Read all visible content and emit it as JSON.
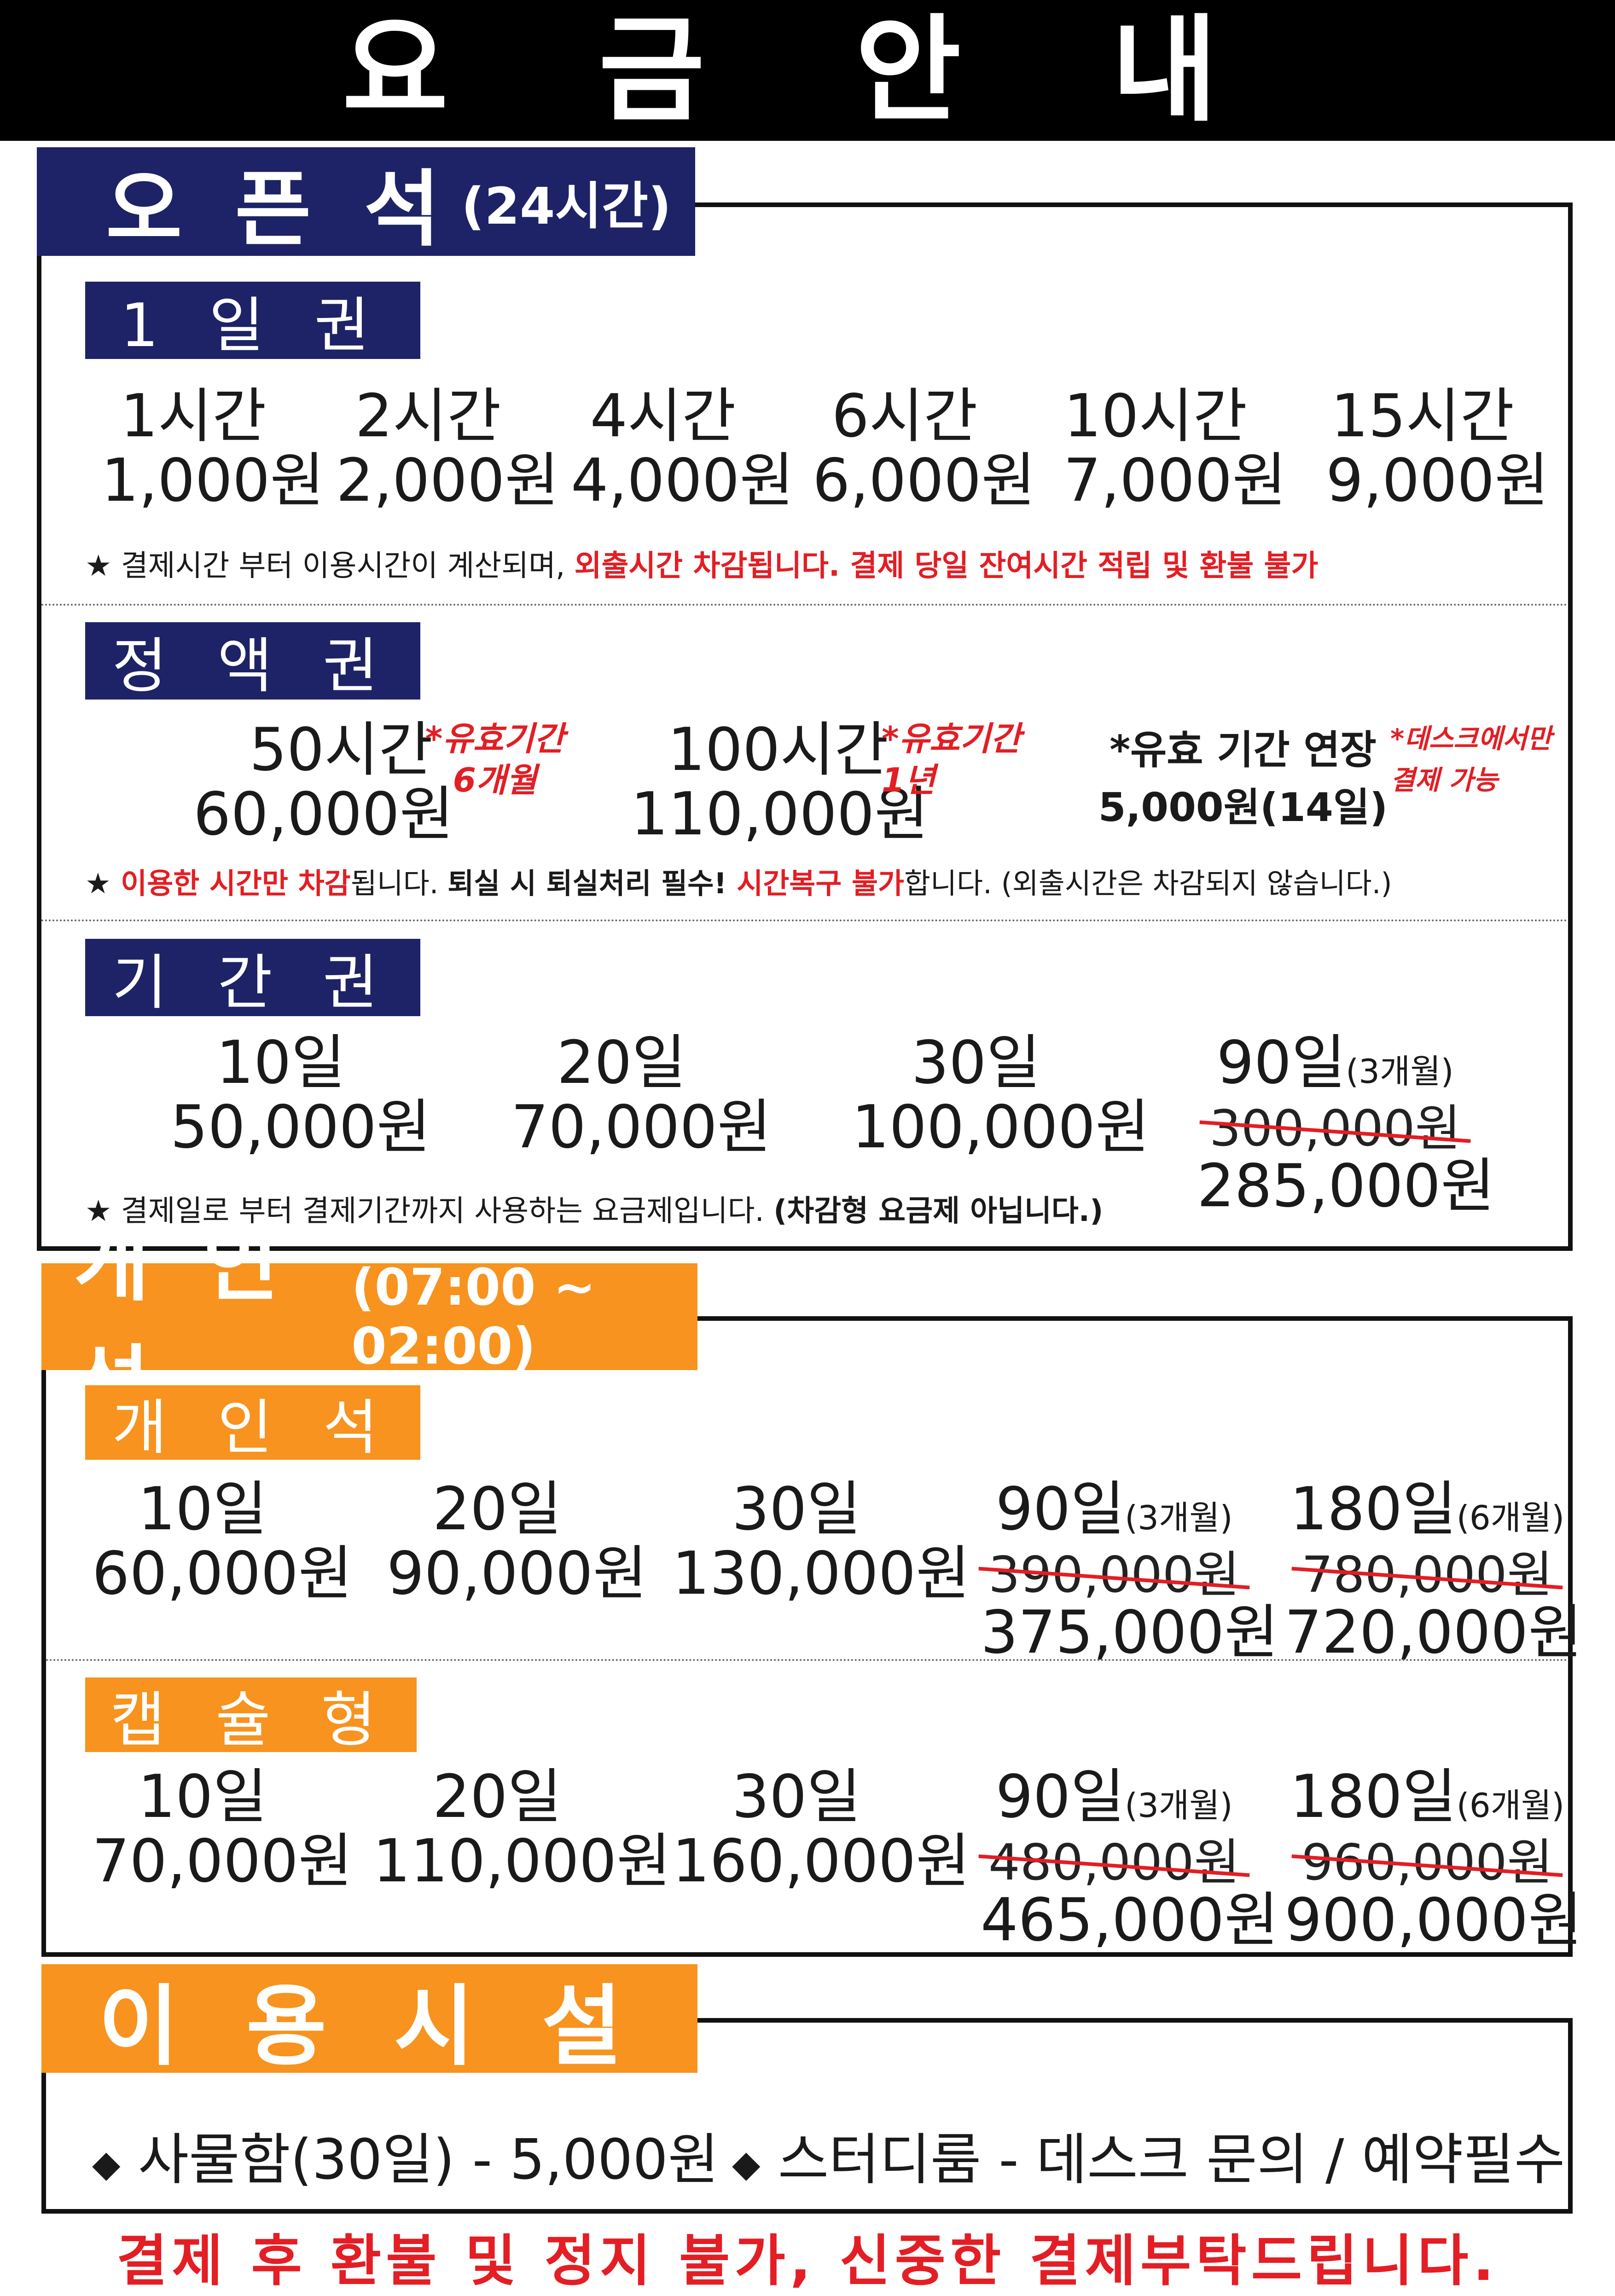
{
  "title": "요 금 안 내",
  "open_seat": {
    "title": "오 픈 석",
    "hours": "(24시간)",
    "day_pass": {
      "label": "1 일 권",
      "items": [
        {
          "duration": "1시간",
          "price": "1,000원"
        },
        {
          "duration": "2시간",
          "price": "2,000원"
        },
        {
          "duration": "4시간",
          "price": "4,000원"
        },
        {
          "duration": "6시간",
          "price": "6,000원"
        },
        {
          "duration": "10시간",
          "price": "7,000원"
        },
        {
          "duration": "15시간",
          "price": "9,000원"
        }
      ],
      "note_star": "★",
      "note_normal": " 결제시간 부터 이용시간이 계산되며, ",
      "note_red": "외출시간 차감됩니다.  결제 당일 잔여시간 적립 및 환불 불가"
    },
    "fixed_pass": {
      "label": "정 액 권",
      "items": [
        {
          "duration": "50시간",
          "price": "60,000원",
          "validity_1": "*유효기간",
          "validity_2": "6개월"
        },
        {
          "duration": "100시간",
          "price": "110,000원",
          "validity_1": "*유효기간",
          "validity_2": "1년"
        }
      ],
      "extension_title": "*유효 기간 연장",
      "extension_price": "5,000원(14일)",
      "extension_note_1": "*데스크에서만",
      "extension_note_2": "결제 가능",
      "note_star": "★",
      "note_red1": " 이용한 시간만 차감",
      "note_part2": "됩니다. ",
      "note_bold": "퇴실 시 퇴실처리 필수!",
      "note_red2": " 시간복구 불가",
      "note_part3": "합니다.  (외출시간은 차감되지 않습니다.)"
    },
    "period_pass": {
      "label": "기 간 권",
      "items": [
        {
          "duration": "10일",
          "price": "50,000원"
        },
        {
          "duration": "20일",
          "price": "70,000원"
        },
        {
          "duration": "30일",
          "price": "100,000원"
        },
        {
          "duration": "90일",
          "paren": "(3개월)",
          "old_price": "300,000원",
          "price": "285,000원"
        }
      ],
      "note_star": "★",
      "note_normal": " 결제일로 부터  결제기간까지 사용하는 요금제입니다. ",
      "note_bold": "(차감형 요금제 아닙니다.)"
    }
  },
  "private_seat": {
    "title": "개 인 석",
    "hours": "(07:00 ~ 02:00)",
    "private": {
      "label": "개 인 석",
      "items": [
        {
          "duration": "10일",
          "price": "60,000원"
        },
        {
          "duration": "20일",
          "price": "90,000원"
        },
        {
          "duration": "30일",
          "price": "130,000원"
        },
        {
          "duration": "90일",
          "paren": "(3개월)",
          "old_price": "390,000원",
          "price": "375,000원"
        },
        {
          "duration": "180일",
          "paren": "(6개월)",
          "old_price": "780,000원",
          "price": "720,000원"
        }
      ]
    },
    "capsule": {
      "label": "캡 슐 형",
      "items": [
        {
          "duration": "10일",
          "price": "70,000원"
        },
        {
          "duration": "20일",
          "price": "110,000원"
        },
        {
          "duration": "30일",
          "price": "160,000원"
        },
        {
          "duration": "90일",
          "paren": "(3개월)",
          "old_price": "480,000원",
          "price": "465,000원"
        },
        {
          "duration": "180일",
          "paren": "(6개월)",
          "old_price": "960,000원",
          "price": "900,000원"
        }
      ]
    }
  },
  "facilities": {
    "title": "이 용 시 설",
    "bullet": "◆",
    "locker": "사물함(30일)  -  5,000원",
    "study_room": "스터디룸 - 데스크 문의 / 예약필수"
  },
  "footer": "결제 후 환불 및 정지 불가, 신중한 결제부탁드립니다.",
  "colors": {
    "navy": "#1d2366",
    "orange": "#f7931e",
    "red": "#e31e24"
  }
}
